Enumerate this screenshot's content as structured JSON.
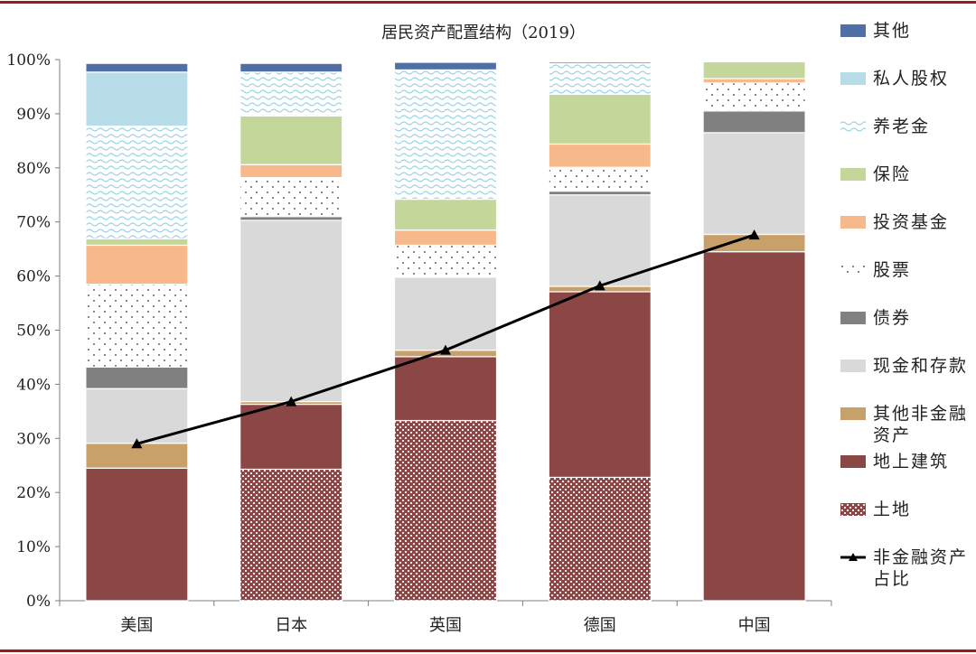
{
  "chart_data": {
    "type": "bar",
    "title": "居民资产配置结构（2019）",
    "categories": [
      "美国",
      "日本",
      "英国",
      "德国",
      "中国"
    ],
    "ylim": [
      0,
      100
    ],
    "yticks": [
      "0%",
      "10%",
      "20%",
      "30%",
      "40%",
      "50%",
      "60%",
      "70%",
      "80%",
      "90%",
      "100%"
    ],
    "stacked": true,
    "series": [
      {
        "name": "土地",
        "values": [
          0,
          24.3,
          33.3,
          22.8,
          0
        ],
        "color": "#8b4646",
        "pattern": "dense-dots"
      },
      {
        "name": "地上建筑",
        "values": [
          24.5,
          12.0,
          11.8,
          34.3,
          64.5
        ],
        "color": "#8b4646",
        "pattern": "solid"
      },
      {
        "name": "其他非金融资产",
        "values": [
          4.6,
          0.5,
          1.2,
          1.0,
          3.2
        ],
        "color": "#c8a06a",
        "pattern": "solid"
      },
      {
        "name": "现金和存款",
        "values": [
          10.1,
          33.5,
          13.5,
          16.9,
          18.8
        ],
        "color": "#d9d9d9",
        "pattern": "solid"
      },
      {
        "name": "债券",
        "values": [
          4.0,
          0.7,
          0.2,
          0.7,
          4.0
        ],
        "color": "#808080",
        "pattern": "solid"
      },
      {
        "name": "股票",
        "values": [
          15.3,
          7.2,
          5.7,
          4.4,
          5.2
        ],
        "color": "#ffffff",
        "pattern": "sparse-dots"
      },
      {
        "name": "投资基金",
        "values": [
          7.2,
          2.4,
          2.8,
          4.3,
          0.8
        ],
        "color": "#f7b98b",
        "pattern": "solid"
      },
      {
        "name": "保险",
        "values": [
          1.2,
          9.0,
          5.7,
          9.2,
          3.1
        ],
        "color": "#c4d79b",
        "pattern": "solid"
      },
      {
        "name": "养老金",
        "values": [
          20.8,
          8.1,
          23.9,
          5.7,
          0
        ],
        "color": "#ffffff",
        "pattern": "waves"
      },
      {
        "name": "私人股权",
        "values": [
          10.0,
          0,
          0,
          0,
          0
        ],
        "color": "#b7dde8",
        "pattern": "solid"
      },
      {
        "name": "其他",
        "values": [
          1.6,
          1.6,
          1.4,
          0.3,
          0
        ],
        "color": "#4f6fa5",
        "pattern": "solid"
      }
    ],
    "line": {
      "name": "非金融资产\n占比",
      "values": [
        29.0,
        36.8,
        46.3,
        58.2,
        67.6
      ],
      "color": "#000000",
      "marker": "triangle"
    },
    "legend_position": "right",
    "grid": false
  },
  "legend_order": [
    "其他",
    "私人股权",
    "养老金",
    "保险",
    "投资基金",
    "股票",
    "债券",
    "现金和存款",
    "其他非金融资产",
    "地上建筑",
    "土地",
    "非金融资产\n占比"
  ]
}
